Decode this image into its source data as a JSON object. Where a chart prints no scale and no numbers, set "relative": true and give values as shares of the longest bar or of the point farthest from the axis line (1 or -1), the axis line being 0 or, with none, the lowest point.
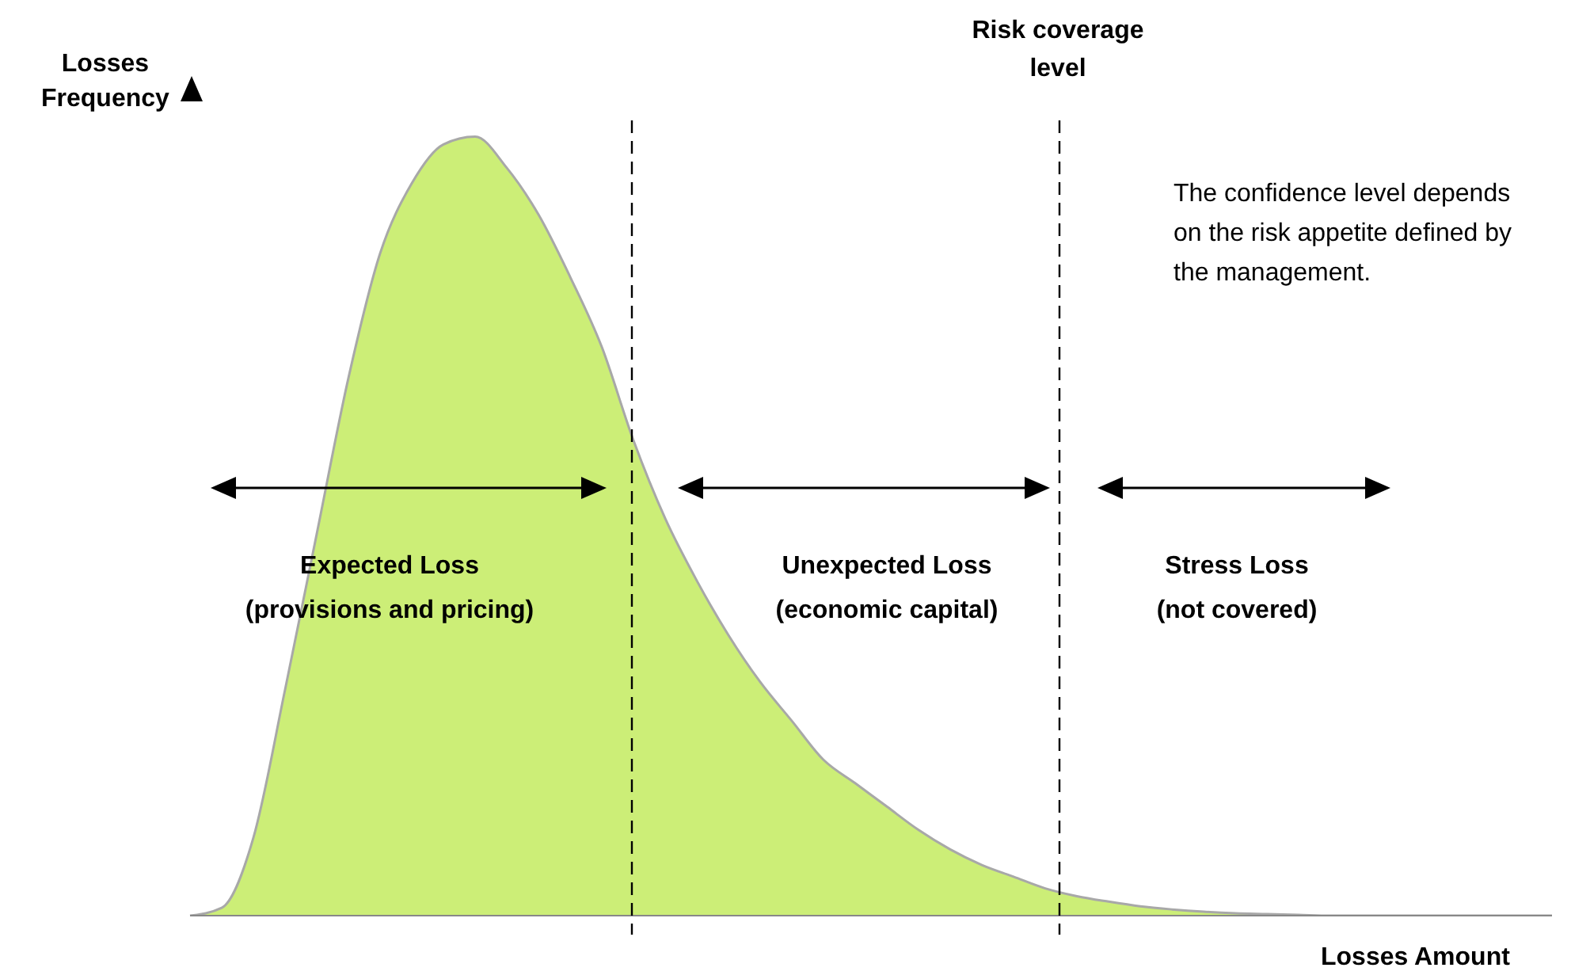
{
  "chart_data": {
    "type": "area",
    "relative": true,
    "color": "#ccee77",
    "categories": [
      null,
      null,
      null,
      null,
      null,
      null,
      null,
      null,
      null,
      null,
      null,
      null,
      null,
      null,
      null,
      null,
      null,
      null,
      null,
      null,
      null,
      null,
      null,
      null,
      null,
      null,
      null,
      null,
      null,
      null,
      null,
      null,
      null,
      null,
      null,
      null,
      null,
      null,
      null,
      null,
      null,
      null,
      null,
      null
    ],
    "values": [
      0,
      0.01,
      0.1,
      0.29,
      0.49,
      0.69,
      0.85,
      0.94,
      0.99,
      1,
      0.96,
      0.9,
      0.82,
      0.73,
      0.61,
      0.51,
      0.43,
      0.36,
      0.3,
      0.25,
      0.2,
      0.17,
      0.14,
      0.11,
      0.085,
      0.065,
      0.05,
      0.035,
      0.025,
      0.018,
      0.012,
      0.008,
      0.005,
      0.003,
      0.002,
      0.001,
      0,
      0,
      0,
      0,
      0,
      0,
      0,
      0
    ],
    "ylabel": "Losses\nFrequency",
    "xlabel": "Losses Amount",
    "annotations": [
      "Expected Loss\n(provisions and pricing)",
      "Unexpected Loss\n(economic capital)",
      "Stress Loss\n(not covered)",
      "The confidence level depends\non the risk appetite defined by\nthe management.",
      "Risk coverage\nlevel"
    ]
  }
}
